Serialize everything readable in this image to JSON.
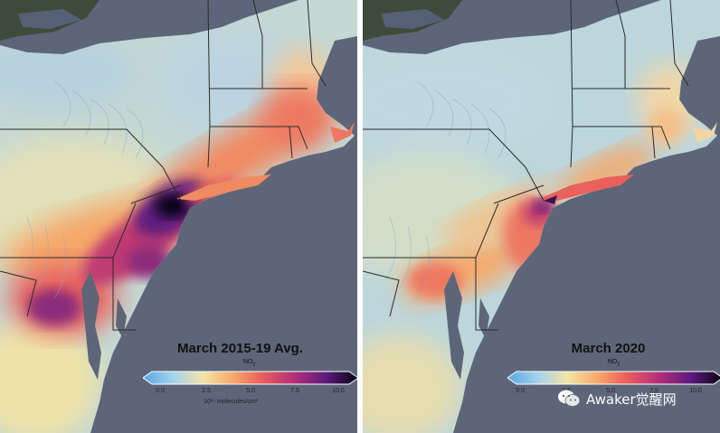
{
  "panels": [
    {
      "id": "left",
      "title": "March 2015-19 Avg.",
      "pollutant": "NO",
      "pollutant_sub": "2",
      "colorbar_ticks": [
        "0.0",
        "2.5",
        "5.0",
        "7.5",
        "10.0"
      ],
      "colorbar_unit": "10¹⁵ molecules/cm²"
    },
    {
      "id": "right",
      "title": "March 2020",
      "pollutant": "NO",
      "pollutant_sub": "2",
      "colorbar_ticks": [
        "0.0",
        "2.5",
        "5.0",
        "7.5",
        "10.0"
      ]
    }
  ],
  "colorbar": {
    "min": 0,
    "max": 10,
    "stops": [
      "#5aa8e6",
      "#a9d4ea",
      "#f3e4a6",
      "#f6a869",
      "#e9605c",
      "#b3307a",
      "#5d1a7e",
      "#060410"
    ]
  },
  "colors": {
    "ocean": "#5c6678",
    "land_base": "#c9dcd2",
    "border": "#2a2a2a"
  },
  "watermark": {
    "text": "Awaker觉醒网"
  }
}
